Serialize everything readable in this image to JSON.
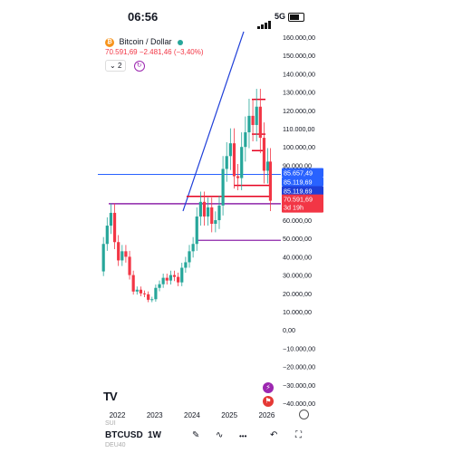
{
  "status_bar": {
    "time": "06:56",
    "network": "5G"
  },
  "header": {
    "symbol_name": "Bitcoin / Dollar",
    "price_line": "70.591,69 −2.481,46 (−3,40%)",
    "layout_count": "2"
  },
  "colors": {
    "up": "#26a69a",
    "down": "#f23645",
    "blue_line": "#1f3fd8",
    "horizontal_blue": "#2962ff",
    "purple": "#8e24aa",
    "red_line": "#e6001f",
    "accent_blue": "#2962ff"
  },
  "icons": [
    "bitcoin-icon",
    "chevron-down-icon",
    "sync-icon",
    "lightning-icon",
    "flag-icon",
    "tradingview-logo-icon",
    "pencil-icon",
    "indicator-icon",
    "more-icon",
    "undo-icon",
    "fullscreen-icon",
    "settings-icon"
  ],
  "toolbar": {
    "symbol": "BTCUSD",
    "interval": "1W",
    "more": "•••"
  },
  "ghost_labels": [
    "SUI",
    "DEU40"
  ],
  "chart_data": {
    "type": "line",
    "title": "Bitcoin / Dollar",
    "xlabel": "",
    "ylabel": "",
    "x_ticks": [
      "2022",
      "2023",
      "2024",
      "2025",
      "2026"
    ],
    "y_ticks": [
      "160.000,00",
      "150.000,00",
      "140.000,00",
      "130.000,00",
      "120.000,00",
      "110.000,00",
      "100.000,00",
      "90.000,00",
      "80.000,00",
      "70.000,00",
      "60.000,00",
      "50.000,00",
      "40.000,00",
      "30.000,00",
      "20.000,00",
      "10.000,00",
      "0,00",
      "−10.000,00",
      "−20.000,00",
      "−30.000,00",
      "−40.000,00"
    ],
    "ylim": [
      -40000,
      160000
    ],
    "xlim": [
      2021.5,
      2026.4
    ],
    "series": [
      {
        "x": [
          2021.55,
          2021.65,
          2021.75,
          2021.85,
          2021.95,
          2022.05,
          2022.15,
          2022.25,
          2022.35,
          2022.45,
          2022.55,
          2022.65,
          2022.75,
          2022.85,
          2022.95,
          2023.05,
          2023.15,
          2023.25,
          2023.35,
          2023.45,
          2023.55,
          2023.65,
          2023.75,
          2023.85,
          2023.95,
          2024.05,
          2024.15,
          2024.25,
          2024.35,
          2024.45,
          2024.55,
          2024.65,
          2024.75,
          2024.85,
          2024.95,
          2025.05,
          2025.15,
          2025.25,
          2025.35,
          2025.45,
          2025.55,
          2025.65,
          2025.75,
          2025.85,
          2025.95,
          2026.05,
          2026.12
        ],
        "values": [
          32000,
          47000,
          57000,
          64000,
          48000,
          38000,
          43000,
          40000,
          30000,
          21000,
          22000,
          20000,
          19500,
          16500,
          16800,
          23000,
          25000,
          28500,
          27000,
          30000,
          29000,
          26000,
          34000,
          37000,
          43000,
          47000,
          62000,
          70000,
          62000,
          67000,
          58000,
          60000,
          68000,
          88000,
          95000,
          102000,
          84000,
          83000,
          100000,
          108000,
          117000,
          112000,
          122000,
          105000,
          87000,
          92000,
          70591
        ]
      }
    ],
    "price_labels": [
      {
        "value": 85657.49,
        "text": "85.657,49",
        "color": "#2962ff"
      },
      {
        "value": 85119.69,
        "text": "85.119,69",
        "color": "#2962ff"
      },
      {
        "value": 85119.69,
        "text": "85.119,69",
        "color": "#1e3fd8"
      },
      {
        "value": 70591.69,
        "text": "70.591,69",
        "color": "#f23645",
        "sub": "3d 19h"
      }
    ],
    "grid": false
  }
}
